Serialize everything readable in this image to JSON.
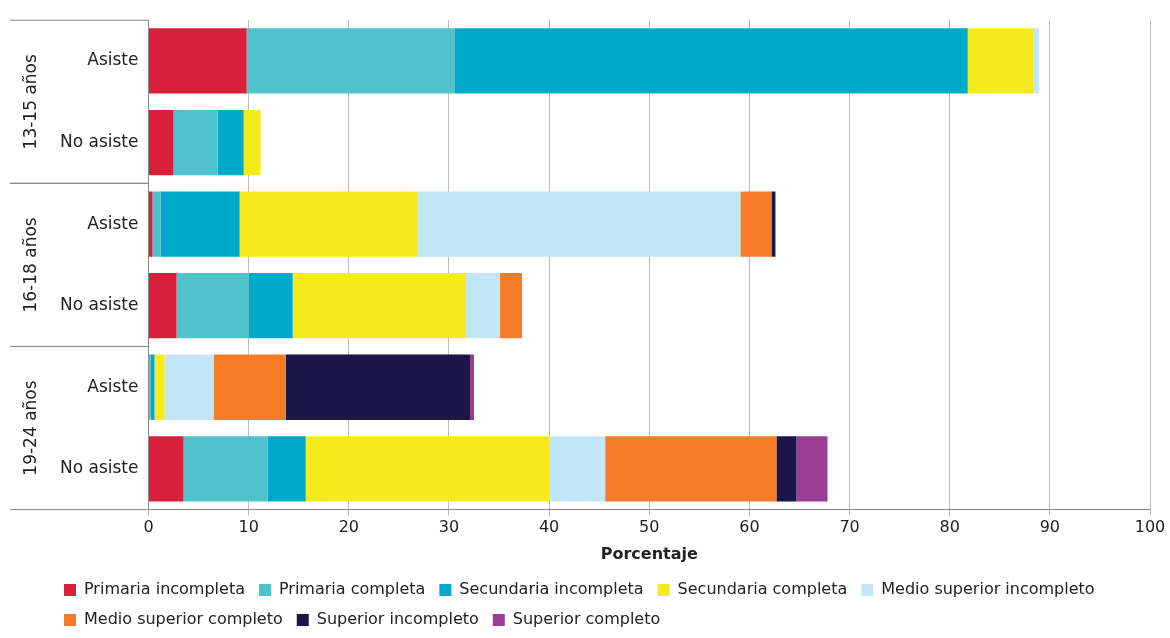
{
  "chart_data": {
    "type": "bar",
    "orientation": "horizontal",
    "stacked": true,
    "xlabel": "Porcentaje",
    "categories": [
      "Asiste",
      "No asiste",
      "Asiste",
      "No asiste",
      "Asiste",
      "No asiste"
    ],
    "annotations": [
      "13-15 años",
      "16-18 años",
      "19-24 años"
    ],
    "xlim": [
      0,
      100
    ],
    "xticks": [
      0,
      10,
      20,
      30,
      40,
      50,
      60,
      70,
      80,
      90,
      100
    ],
    "grid": "x",
    "legend": "bottom",
    "series": [
      {
        "name": "Primaria incompleta",
        "color": "#d9203a",
        "values": [
          9.8,
          2.5,
          0.4,
          2.8,
          0,
          3.5
        ]
      },
      {
        "name": "Primaria completa",
        "color": "#4fc3cc",
        "values": [
          20.8,
          4.4,
          0.8,
          7.2,
          0.2,
          8.4
        ]
      },
      {
        "name": "Secundaria incompleta",
        "color": "#00a9c9",
        "values": [
          51.2,
          2.6,
          7.9,
          4.4,
          0.4,
          3.8
        ]
      },
      {
        "name": "Secundaria completa",
        "color": "#f5ea1c",
        "values": [
          6.6,
          1.7,
          17.8,
          17.3,
          1.0,
          24.3
        ]
      },
      {
        "name": "Medio superior incompleto",
        "color": "#c2e6f5",
        "values": [
          0.5,
          0,
          32.2,
          3.4,
          4.9,
          5.6
        ]
      },
      {
        "name": "Medio superior completo",
        "color": "#f47b28",
        "values": [
          0,
          0,
          3.1,
          2.2,
          7.2,
          17.1
        ]
      },
      {
        "name": "Superior incompleto",
        "color": "#1c1548",
        "values": [
          0,
          0,
          0.4,
          0,
          18.4,
          2.0
        ]
      },
      {
        "name": "Superior completo",
        "color": "#9b3d95",
        "values": [
          0,
          0,
          0,
          0,
          0.4,
          3.1
        ]
      }
    ]
  }
}
